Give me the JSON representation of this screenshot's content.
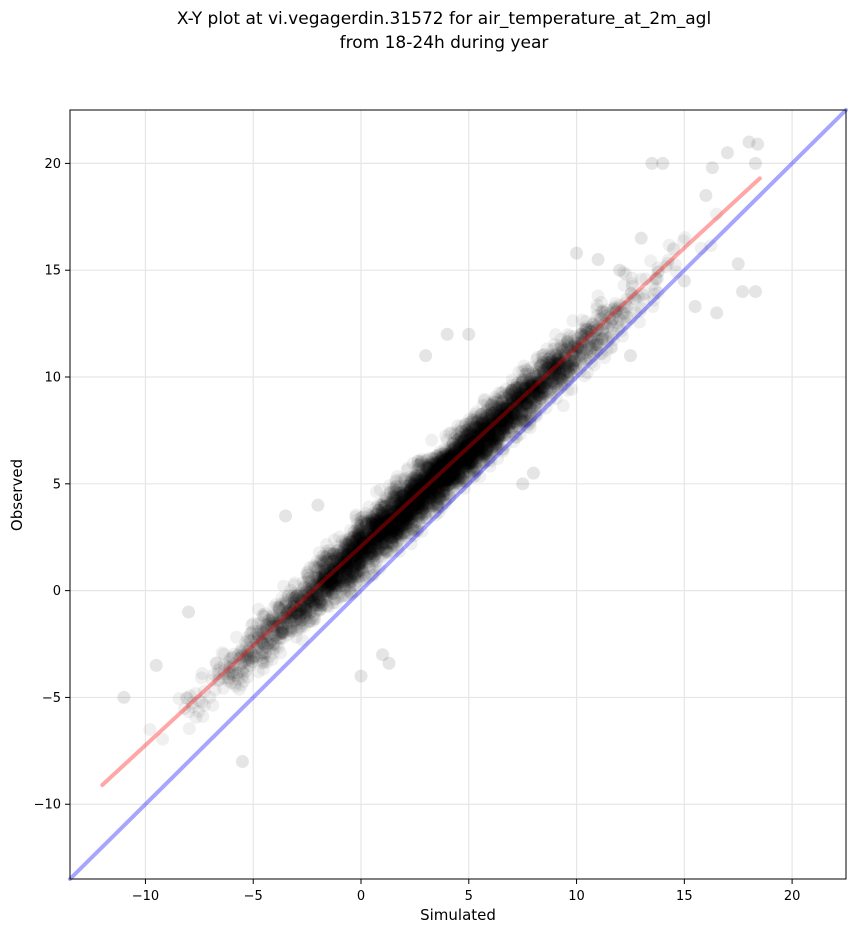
{
  "chart_data": {
    "type": "scatter",
    "title": [
      "X-Y plot at vi.vegagerdin.31572 for air_temperature_at_2m_agl",
      "from 18-24h during year"
    ],
    "xlabel": "Simulated",
    "ylabel": "Observed",
    "xlim": [
      -13.5,
      22.5
    ],
    "ylim": [
      -13.5,
      22.5
    ],
    "xticks": [
      -10,
      -5,
      0,
      5,
      10,
      15,
      20
    ],
    "yticks": [
      -10,
      -5,
      0,
      5,
      10,
      15,
      20
    ],
    "xtick_labels": [
      "−10",
      "−5",
      "0",
      "5",
      "10",
      "15",
      "20"
    ],
    "ytick_labels": [
      "−10",
      "−5",
      "0",
      "5",
      "10",
      "15",
      "20"
    ],
    "grid": true,
    "point_color": "#000000",
    "series": [
      {
        "kind": "points",
        "color": "#000000",
        "trend": {
          "slope": 0.93,
          "intercept": 1.95,
          "x_range": [
            -12,
            18.5
          ]
        },
        "spread": 1.0,
        "approx_count": 5000,
        "outliers": [
          {
            "x": -3.5,
            "y": 3.5
          },
          {
            "x": -2,
            "y": 4
          },
          {
            "x": 0,
            "y": -4
          },
          {
            "x": 1,
            "y": -3
          },
          {
            "x": 1.3,
            "y": -3.4
          },
          {
            "x": -5.5,
            "y": -8
          },
          {
            "x": 3,
            "y": 11
          },
          {
            "x": 4,
            "y": 12
          },
          {
            "x": 5,
            "y": 12
          },
          {
            "x": 7.5,
            "y": 5
          },
          {
            "x": 8,
            "y": 5.5
          },
          {
            "x": 10,
            "y": 15.8
          },
          {
            "x": 11,
            "y": 15.5
          },
          {
            "x": 12.5,
            "y": 11
          },
          {
            "x": 13,
            "y": 16.5
          },
          {
            "x": 13.5,
            "y": 20
          },
          {
            "x": 14,
            "y": 20
          },
          {
            "x": 15,
            "y": 14.5
          },
          {
            "x": 15.5,
            "y": 13.3
          },
          {
            "x": 16,
            "y": 18.5
          },
          {
            "x": 16.5,
            "y": 13
          },
          {
            "x": 17,
            "y": 20.5
          },
          {
            "x": 17.5,
            "y": 15.3
          },
          {
            "x": 17.7,
            "y": 14
          },
          {
            "x": 18,
            "y": 21
          },
          {
            "x": 18.3,
            "y": 20
          },
          {
            "x": 18.4,
            "y": 20.9
          },
          {
            "x": 18.3,
            "y": 14
          },
          {
            "x": 16.3,
            "y": 19.8
          },
          {
            "x": 14.5,
            "y": 16
          },
          {
            "x": 12,
            "y": 15
          },
          {
            "x": -8,
            "y": -1
          },
          {
            "x": -9.5,
            "y": -3.5
          },
          {
            "x": -11,
            "y": -5
          }
        ]
      },
      {
        "kind": "line",
        "name": "",
        "color": "#ff0000",
        "points": [
          [
            -12,
            -9.1
          ],
          [
            18.5,
            19.3
          ]
        ]
      },
      {
        "kind": "line",
        "name": "",
        "color": "#0000ff",
        "points": [
          [
            -13.5,
            -13.5
          ],
          [
            22.5,
            22.5
          ]
        ]
      }
    ]
  }
}
